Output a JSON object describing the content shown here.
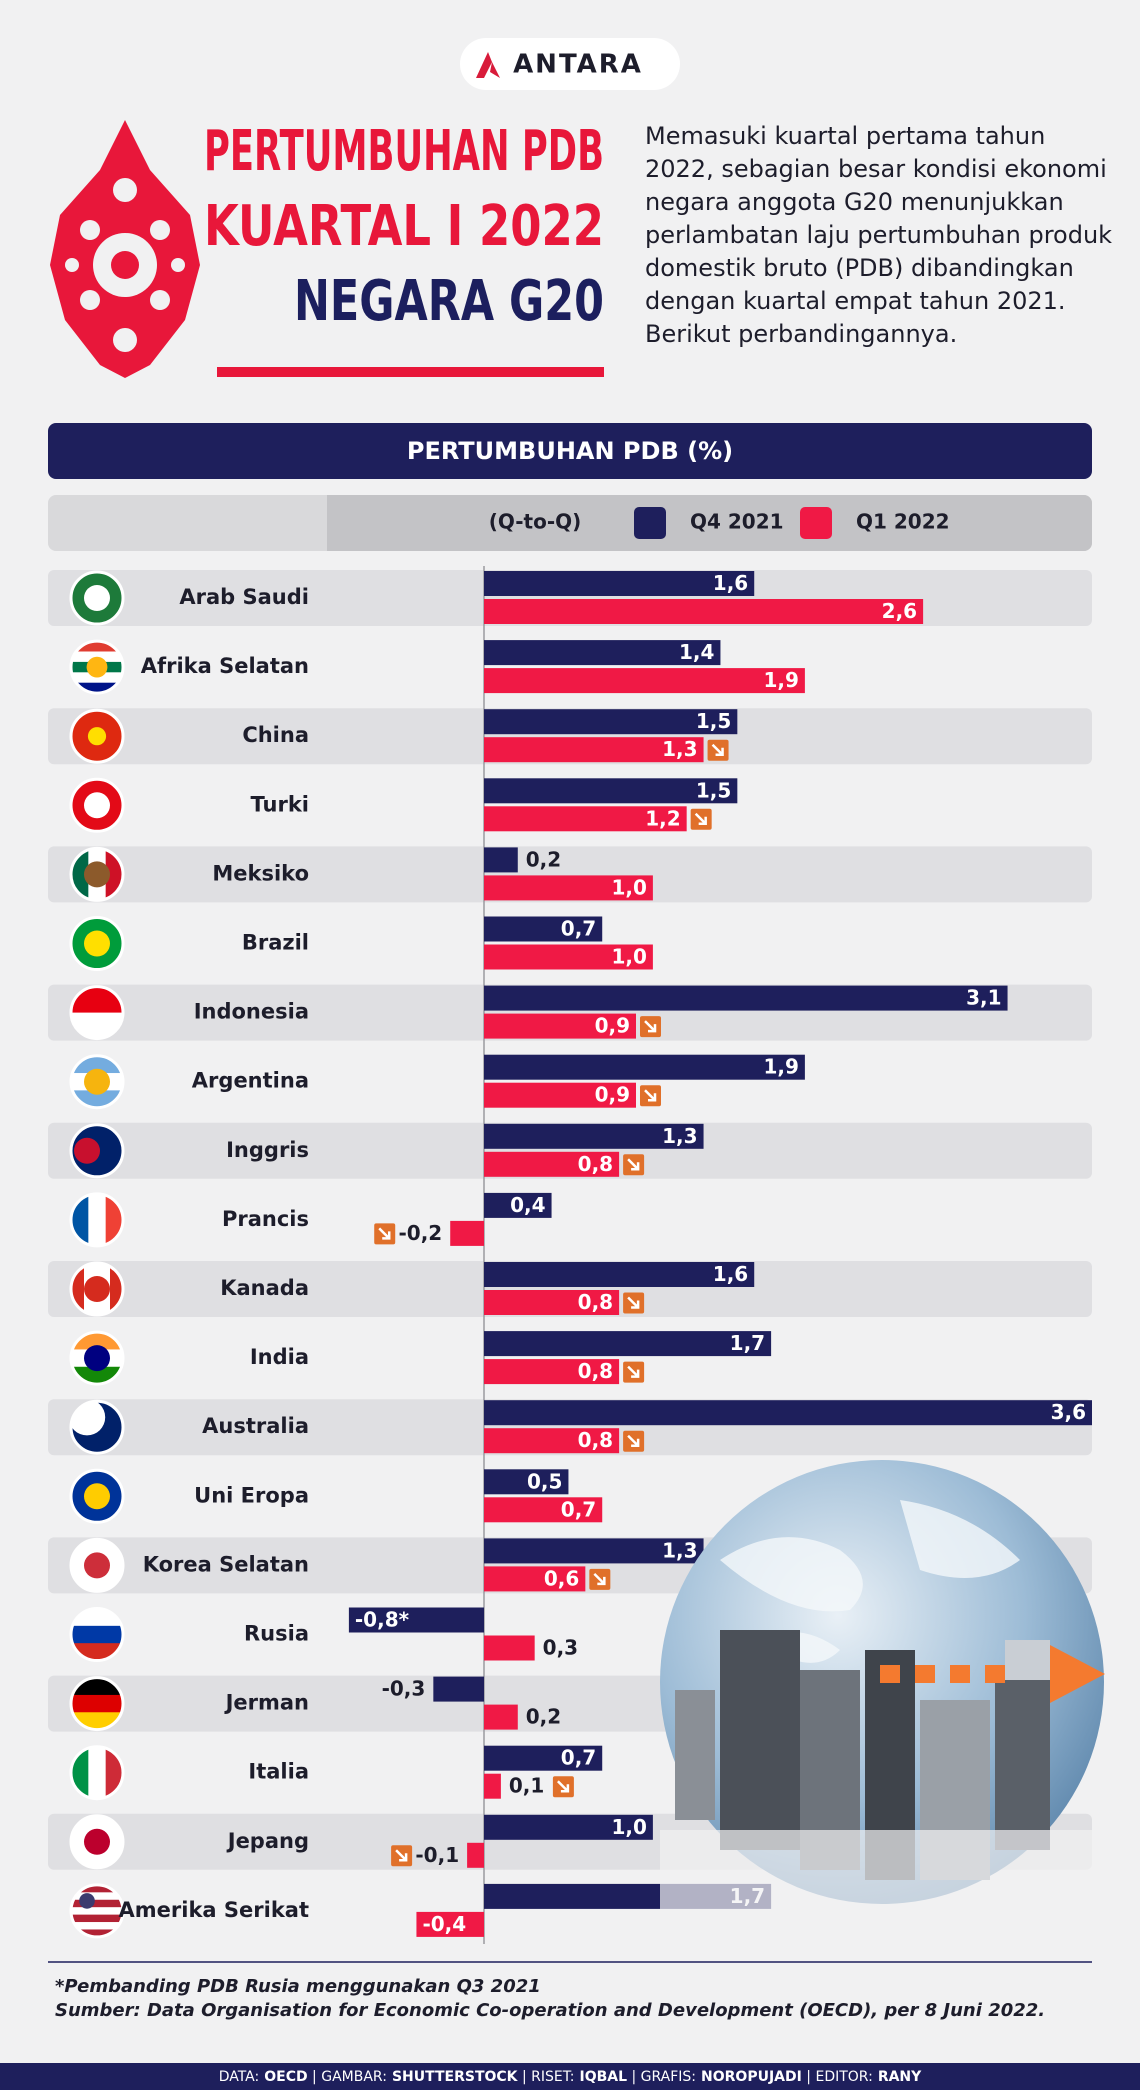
{
  "header": {
    "logo": "ANTARA",
    "title": [
      "PERTUMBUHAN PDB",
      "KUARTAL I 2022",
      "NEGARA G20"
    ],
    "intro": "Memasuki kuartal pertama tahun 2022, sebagian besar kondisi ekonomi negara anggota G20 menunjukkan perlambatan laju pertumbuhan produk domestik bruto (PDB) dibandingkan dengan kuartal empat tahun 2021. Berikut perbandingannya."
  },
  "chart_data": {
    "type": "bar",
    "orientation": "horizontal",
    "title": "PERTUMBUHAN PDB (%)",
    "subtitle": "(Q-to-Q)",
    "categories": [
      "Arab Saudi",
      "Afrika Selatan",
      "China",
      "Turki",
      "Meksiko",
      "Brazil",
      "Indonesia",
      "Argentina",
      "Inggris",
      "Prancis",
      "Kanada",
      "India",
      "Australia",
      "Uni Eropa",
      "Korea Selatan",
      "Rusia",
      "Jerman",
      "Italia",
      "Jepang",
      "Amerika Serikat"
    ],
    "series": [
      {
        "name": "Q4 2021",
        "color": "#1e1f5c",
        "values": [
          1.6,
          1.4,
          1.5,
          1.5,
          0.2,
          0.7,
          3.1,
          1.9,
          1.3,
          0.4,
          1.6,
          1.7,
          3.6,
          0.5,
          1.3,
          -0.8,
          -0.3,
          0.7,
          1.0,
          1.7
        ],
        "value_labels": [
          "1,6",
          "1,4",
          "1,5",
          "1,5",
          "0,2",
          "0,7",
          "3,1",
          "1,9",
          "1,3",
          "0,4",
          "1,6",
          "1,7",
          "3,6",
          "0,5",
          "1,3",
          "-0,8*",
          "-0,3",
          "0,7",
          "1,0",
          "1,7"
        ]
      },
      {
        "name": "Q1 2022",
        "color": "#f01945",
        "values": [
          2.6,
          1.9,
          1.3,
          1.2,
          1.0,
          1.0,
          0.9,
          0.9,
          0.8,
          -0.2,
          0.8,
          0.8,
          0.8,
          0.7,
          0.6,
          0.3,
          0.2,
          0.1,
          -0.1,
          -0.4
        ],
        "value_labels": [
          "2,6",
          "1,9",
          "1,3",
          "1,2",
          "1,0",
          "1,0",
          "0,9",
          "0,9",
          "0,8",
          "-0,2",
          "0,8",
          "0,8",
          "0,8",
          "0,7",
          "0,6",
          "0,3",
          "0,2",
          "0,1",
          "-0,1",
          "-0,4"
        ]
      }
    ]
  },
  "footer": {
    "notes": [
      "*Pembanding PDB Rusia menggunakan Q3 2021",
      "Sumber: Data Organisation for Economic Co-operation and Development (OECD), per 8 Juni 2022."
    ],
    "credits": [
      {
        "label": "DATA:",
        "name": "OECD"
      },
      {
        "label": "GAMBAR:",
        "name": "SHUTTERSTOCK"
      },
      {
        "label": "RISET:",
        "name": "IQBAL"
      },
      {
        "label": "GRAFIS:",
        "name": "NOROPUJADI"
      },
      {
        "label": "EDITOR:",
        "name": "RANY"
      }
    ]
  }
}
